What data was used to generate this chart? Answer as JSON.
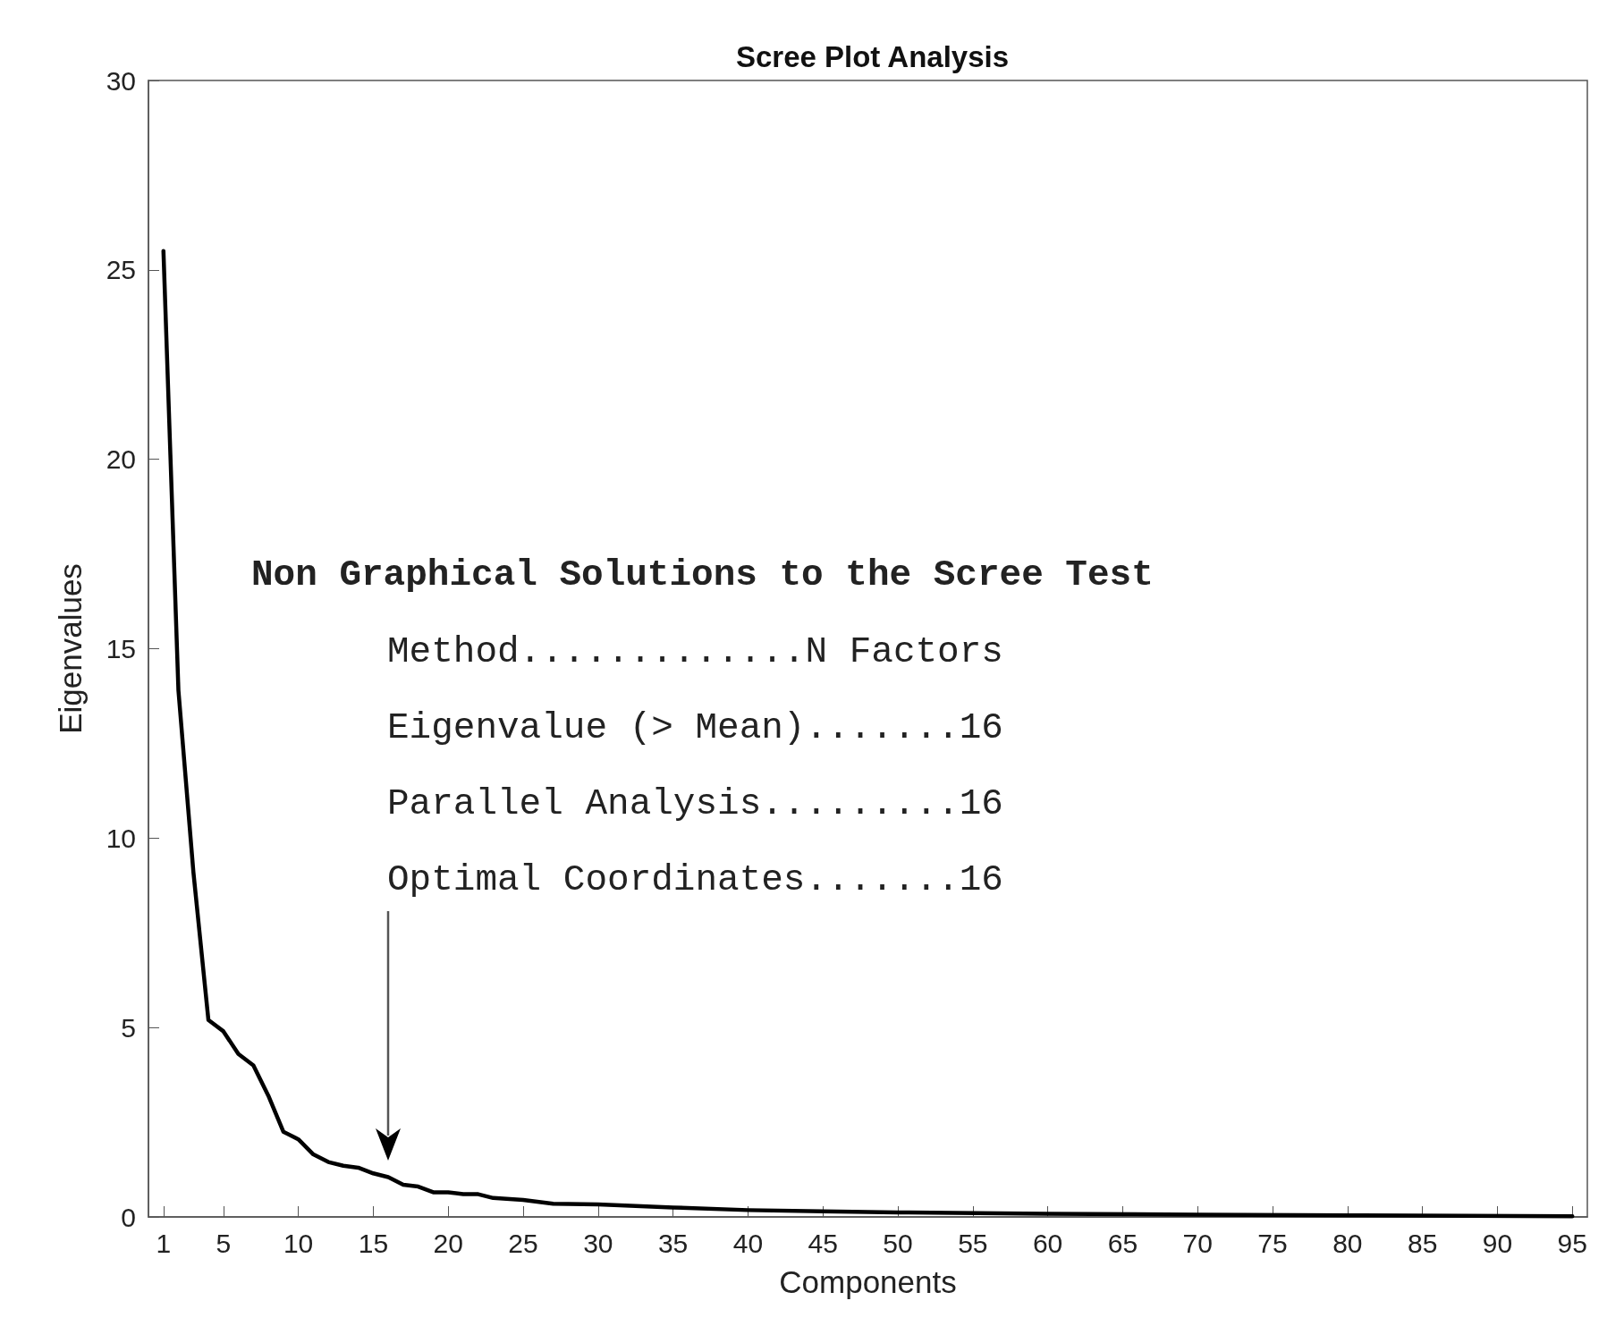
{
  "chart_data": {
    "type": "line",
    "title": "Scree Plot Analysis",
    "xlabel": "Components",
    "ylabel": "Eigenvalues",
    "x": [
      1,
      2,
      3,
      4,
      5,
      6,
      7,
      8,
      9,
      10,
      11,
      12,
      13,
      14,
      15,
      16,
      17,
      18,
      19,
      20,
      21,
      22,
      23,
      25,
      27,
      30,
      35,
      40,
      45,
      50,
      60,
      70,
      80,
      95
    ],
    "series": [
      {
        "color": "#000000",
        "values": [
          25.5,
          13.9,
          9.1,
          5.2,
          4.9,
          4.3,
          4.0,
          3.2,
          2.25,
          2.05,
          1.65,
          1.45,
          1.35,
          1.3,
          1.15,
          1.05,
          0.85,
          0.8,
          0.65,
          0.65,
          0.6,
          0.6,
          0.5,
          0.45,
          0.35,
          0.33,
          0.25,
          0.18,
          0.15,
          0.12,
          0.08,
          0.06,
          0.04,
          0.02
        ]
      }
    ],
    "xlim": [
      0,
      96
    ],
    "xticks": [
      1,
      5,
      10,
      15,
      20,
      25,
      30,
      35,
      40,
      45,
      50,
      55,
      60,
      65,
      70,
      75,
      80,
      85,
      90,
      95
    ],
    "ylim": [
      0,
      30
    ],
    "yticks": [
      0,
      5,
      10,
      15,
      20,
      25,
      30
    ],
    "grid": false,
    "marker": "none",
    "line_style": "solid",
    "annotations": [
      "Non Graphical Solutions to the Scree Test",
      "Method.............N Factors",
      "Eigenvalue (> Mean).......16",
      "Parallel Analysis.........16",
      "Optimal Coordinates.......16"
    ]
  }
}
